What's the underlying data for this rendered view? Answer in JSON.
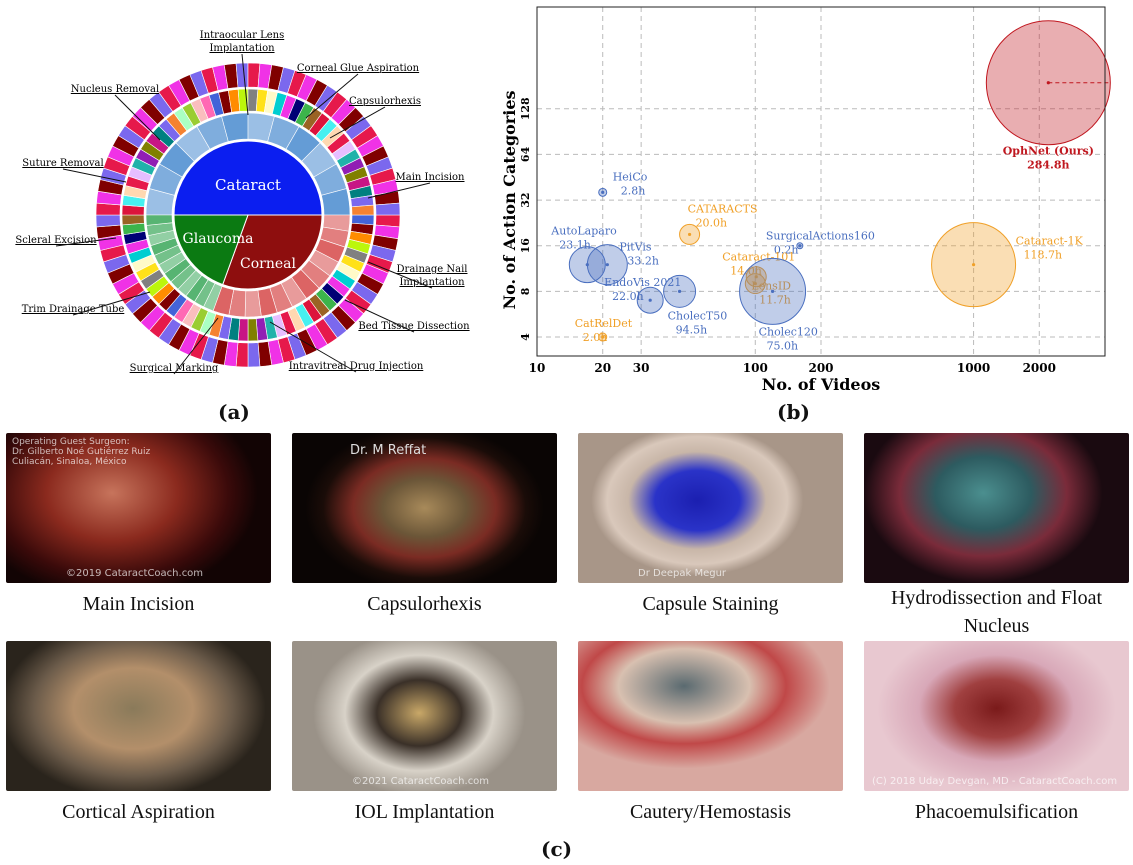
{
  "panel_a": {
    "label": "(a)",
    "center_labels": [
      "Cataract",
      "Glaucoma",
      "Corneal"
    ],
    "callouts": [
      "Intraocular Lens Implantation",
      "Corneal Glue Aspiration",
      "Capsulorhexis",
      "Nucleus Removal",
      "Main Incision",
      "Suture Removal",
      "Scleral Excision",
      "Drainage Nail Implantation",
      "Trim Drainage Tube",
      "Bed Tissue Dissection",
      "Surgical Marking",
      "Intravitreal Drug Injection"
    ],
    "colors": {
      "cataract": "#0b1ef0",
      "glaucoma": "#0b7a12",
      "corneal": "#8e0e0e"
    }
  },
  "panel_b": {
    "label": "(b)"
  },
  "chart_data": {
    "type": "scatter",
    "xlabel": "No. of Videos",
    "ylabel": "No. of Action Categories",
    "x_scale": "log",
    "y_scale": "log",
    "x_ticks": [
      10,
      20,
      30,
      100,
      200,
      1000,
      2000
    ],
    "y_ticks": [
      4,
      8,
      16,
      32,
      64,
      128
    ],
    "xlim": [
      10,
      4000
    ],
    "ylim": [
      3,
      600
    ],
    "grid": true,
    "points": [
      {
        "name": "OphNet (Ours)",
        "hours": "284.8h",
        "x": 2200,
        "y": 190,
        "color": "#c0171f"
      },
      {
        "name": "Cataract-1K",
        "hours": "118.7h",
        "x": 1000,
        "y": 12,
        "color": "#f0a028"
      },
      {
        "name": "HeiCo",
        "hours": "2.8h",
        "x": 20,
        "y": 36,
        "color": "#4a6fbf"
      },
      {
        "name": "AutoLaparo",
        "hours": "23.1h",
        "x": 17,
        "y": 12,
        "color": "#4a6fbf"
      },
      {
        "name": "PitVis",
        "hours": "33.2h",
        "x": 21,
        "y": 12,
        "color": "#4a6fbf"
      },
      {
        "name": "CATARACTS",
        "hours": "20.0h",
        "x": 50,
        "y": 19,
        "color": "#f0a028"
      },
      {
        "name": "SurgicalActions160",
        "hours": "0.2h",
        "x": 160,
        "y": 16,
        "color": "#4a6fbf"
      },
      {
        "name": "Cataract-101",
        "hours": "14.0h",
        "x": 101,
        "y": 10,
        "color": "#f0a028"
      },
      {
        "name": "LensID",
        "hours": "11.7h",
        "x": 100,
        "y": 9,
        "color": "#f0a028"
      },
      {
        "name": "EndoVis 2021",
        "hours": "22.0h",
        "x": 33,
        "y": 7,
        "color": "#4a6fbf"
      },
      {
        "name": "CholecT50",
        "hours": "94.5h",
        "x": 45,
        "y": 8,
        "color": "#4a6fbf"
      },
      {
        "name": "Cholec120",
        "hours": "75.0h",
        "x": 120,
        "y": 8,
        "color": "#4a6fbf"
      },
      {
        "name": "CatRelDet",
        "hours": "2.0h",
        "x": 20,
        "y": 4,
        "color": "#f0a028"
      }
    ]
  },
  "panel_c": {
    "label": "(c)",
    "frames": [
      {
        "caption": "Main Incision",
        "watermark": "©2019 CataractCoach.com",
        "overlay": "Operating Guest Surgeon:\nDr. Gilberto Noé Gutiérrez Ruiz\nCuliacán, Sinaloa, México"
      },
      {
        "caption": "Capsulorhexis",
        "watermark": "",
        "overlay": "Dr. M Reffat"
      },
      {
        "caption": "Capsule Staining",
        "watermark": "Dr Deepak Megur",
        "overlay": ""
      },
      {
        "caption": "Hydrodissection and Float Nucleus",
        "watermark": "",
        "overlay": ""
      },
      {
        "caption": "Cortical Aspiration",
        "watermark": "",
        "overlay": ""
      },
      {
        "caption": "IOL Implantation",
        "watermark": "©2021 CataractCoach.com",
        "overlay": ""
      },
      {
        "caption": "Cautery/Hemostasis",
        "watermark": "",
        "overlay": ""
      },
      {
        "caption": "Phacoemulsification",
        "watermark": "(C) 2018 Uday Devgan, MD - CataractCoach.com",
        "overlay": ""
      }
    ]
  }
}
